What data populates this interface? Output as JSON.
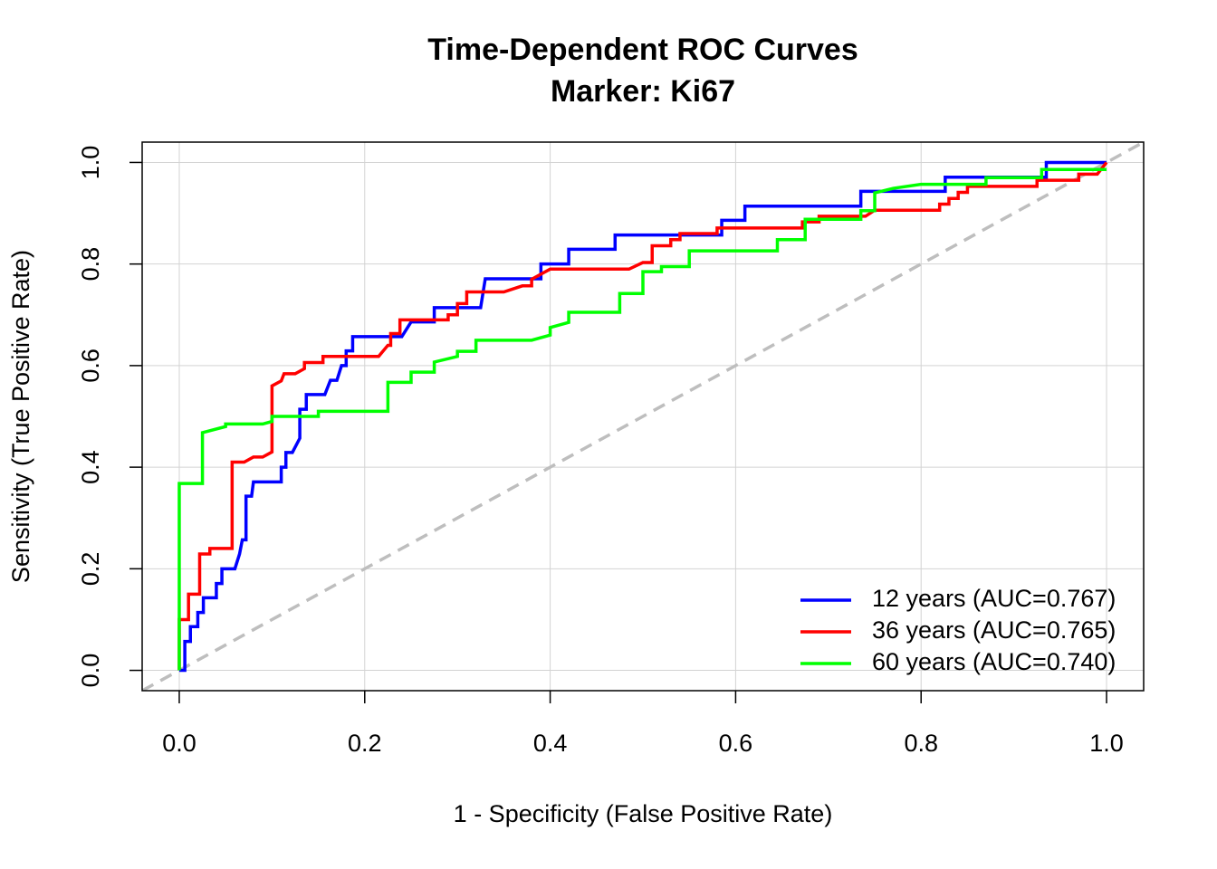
{
  "chart_data": {
    "type": "line",
    "title": "Time-Dependent ROC Curves",
    "subtitle": "Marker: Ki67",
    "x_label": "1 - Specificity (False Positive Rate)",
    "y_label": "Sensitivity (True Positive Rate)",
    "xlim": [
      -0.04,
      1.04
    ],
    "ylim": [
      -0.04,
      1.04
    ],
    "xticks": [
      {
        "value": 0,
        "label": "0.0"
      },
      0.2,
      0.4,
      0.6,
      0.8,
      {
        "value": 1,
        "label": "1.0"
      }
    ],
    "yticks": [
      {
        "value": 0,
        "label": "0.0"
      },
      0.2,
      0.4,
      0.6,
      0.8,
      {
        "value": 1,
        "label": "1.0"
      }
    ],
    "grid": true,
    "legend_position": "bottomright",
    "reference_line_color": "#bebebe",
    "series": [
      {
        "name": "12 years (AUC=0.767)",
        "color": "#0000ff",
        "x": [
          0,
          0.006,
          0.006,
          0.012,
          0.012,
          0.02,
          0.02,
          0.026,
          0.026,
          0.04,
          0.04,
          0.046,
          0.046,
          0.06,
          0.065,
          0.068,
          0.072,
          0.072,
          0.078,
          0.08,
          0.11,
          0.11,
          0.115,
          0.115,
          0.122,
          0.13,
          0.13,
          0.137,
          0.137,
          0.157,
          0.163,
          0.17,
          0.175,
          0.18,
          0.18,
          0.187,
          0.187,
          0.24,
          0.25,
          0.275,
          0.275,
          0.325,
          0.33,
          0.39,
          0.39,
          0.42,
          0.42,
          0.47,
          0.47,
          0.585,
          0.585,
          0.61,
          0.61,
          0.735,
          0.735,
          0.826,
          0.826,
          0.935,
          0.935,
          1
        ],
        "values": [
          0,
          0,
          0.057,
          0.057,
          0.086,
          0.086,
          0.114,
          0.114,
          0.143,
          0.143,
          0.171,
          0.171,
          0.2,
          0.2,
          0.229,
          0.257,
          0.257,
          0.343,
          0.343,
          0.371,
          0.371,
          0.4,
          0.4,
          0.429,
          0.429,
          0.457,
          0.514,
          0.514,
          0.543,
          0.543,
          0.571,
          0.571,
          0.6,
          0.6,
          0.629,
          0.629,
          0.657,
          0.657,
          0.686,
          0.686,
          0.714,
          0.714,
          0.771,
          0.771,
          0.8,
          0.8,
          0.829,
          0.829,
          0.857,
          0.857,
          0.886,
          0.886,
          0.914,
          0.914,
          0.943,
          0.943,
          0.971,
          0.971,
          1,
          1
        ]
      },
      {
        "name": "36 years (AUC=0.765)",
        "color": "#ff0000",
        "x": [
          0,
          0,
          0.01,
          0.01,
          0.022,
          0.022,
          0.033,
          0.033,
          0.057,
          0.057,
          0.07,
          0.08,
          0.09,
          0.1,
          0.1,
          0.11,
          0.113,
          0.125,
          0.135,
          0.135,
          0.155,
          0.155,
          0.215,
          0.225,
          0.228,
          0.228,
          0.238,
          0.238,
          0.29,
          0.29,
          0.3,
          0.3,
          0.31,
          0.31,
          0.35,
          0.37,
          0.38,
          0.38,
          0.39,
          0.4,
          0.485,
          0.5,
          0.51,
          0.51,
          0.53,
          0.53,
          0.54,
          0.54,
          0.58,
          0.58,
          0.672,
          0.672,
          0.69,
          0.69,
          0.74,
          0.75,
          0.82,
          0.82,
          0.83,
          0.83,
          0.84,
          0.84,
          0.85,
          0.85,
          0.925,
          0.925,
          0.97,
          0.97,
          0.99,
          1
        ],
        "values": [
          0,
          0.1,
          0.1,
          0.15,
          0.15,
          0.229,
          0.229,
          0.24,
          0.24,
          0.41,
          0.41,
          0.42,
          0.42,
          0.43,
          0.56,
          0.57,
          0.584,
          0.584,
          0.594,
          0.606,
          0.606,
          0.618,
          0.618,
          0.64,
          0.64,
          0.663,
          0.663,
          0.69,
          0.69,
          0.7,
          0.7,
          0.722,
          0.722,
          0.745,
          0.745,
          0.757,
          0.757,
          0.77,
          0.78,
          0.79,
          0.79,
          0.803,
          0.803,
          0.836,
          0.836,
          0.848,
          0.848,
          0.86,
          0.86,
          0.871,
          0.871,
          0.883,
          0.883,
          0.894,
          0.894,
          0.906,
          0.906,
          0.918,
          0.918,
          0.929,
          0.929,
          0.941,
          0.941,
          0.953,
          0.953,
          0.965,
          0.965,
          0.977,
          0.977,
          1
        ]
      },
      {
        "name": "60 years (AUC=0.740)",
        "color": "#00ff00",
        "x": [
          0,
          0,
          0.025,
          0.025,
          0.05,
          0.05,
          0.09,
          0.1,
          0.1,
          0.15,
          0.15,
          0.225,
          0.225,
          0.25,
          0.25,
          0.275,
          0.275,
          0.3,
          0.3,
          0.32,
          0.32,
          0.38,
          0.4,
          0.4,
          0.42,
          0.42,
          0.475,
          0.475,
          0.5,
          0.5,
          0.52,
          0.52,
          0.55,
          0.55,
          0.645,
          0.645,
          0.675,
          0.675,
          0.735,
          0.735,
          0.75,
          0.75,
          0.77,
          0.8,
          0.87,
          0.87,
          0.93,
          0.93,
          1
        ],
        "values": [
          0,
          0.368,
          0.368,
          0.468,
          0.48,
          0.485,
          0.485,
          0.49,
          0.5,
          0.5,
          0.51,
          0.51,
          0.567,
          0.567,
          0.587,
          0.587,
          0.607,
          0.618,
          0.628,
          0.628,
          0.65,
          0.65,
          0.66,
          0.675,
          0.685,
          0.705,
          0.705,
          0.742,
          0.742,
          0.785,
          0.785,
          0.795,
          0.795,
          0.826,
          0.826,
          0.848,
          0.848,
          0.888,
          0.888,
          0.905,
          0.905,
          0.94,
          0.949,
          0.957,
          0.957,
          0.97,
          0.97,
          0.986,
          0.986
        ]
      }
    ]
  }
}
